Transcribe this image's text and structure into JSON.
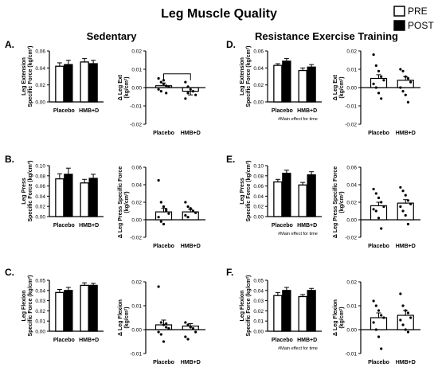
{
  "figure": {
    "title": "Leg Muscle Quality",
    "legend": [
      {
        "label": "PRE",
        "fill": "#ffffff"
      },
      {
        "label": "POST",
        "fill": "#000000"
      }
    ],
    "sections": [
      {
        "title": "Sedentary"
      },
      {
        "title": "Resistance Exercise Training"
      }
    ],
    "notes": [
      "#Main effect for time"
    ]
  },
  "chart_data": [
    {
      "id": "A-left",
      "panel_label": "A.",
      "type": "bar",
      "categories": [
        "Placebo",
        "HMB+D"
      ],
      "series": [
        {
          "name": "PRE",
          "values": [
            0.042,
            0.047
          ],
          "errors": [
            0.004,
            0.004
          ]
        },
        {
          "name": "POST",
          "values": [
            0.044,
            0.045
          ],
          "errors": [
            0.005,
            0.004
          ]
        }
      ],
      "ylabel": [
        "Leg Extension",
        "Specific Force (kg/cm²)"
      ],
      "ylim": [
        0,
        0.06
      ],
      "yticks": [
        "0.00",
        "0.02",
        "0.04",
        "0.06"
      ]
    },
    {
      "id": "A-right",
      "type": "scatter-bar",
      "categories": [
        "Placebo",
        "HMB+D"
      ],
      "values": [
        0.001,
        -0.002
      ],
      "errors": [
        0.0015,
        0.002
      ],
      "points": [
        [
          0.005,
          0.003,
          0.002,
          0.001,
          0.0005,
          -0.001,
          -0.002,
          0.004,
          -0.003
        ],
        [
          0.003,
          0.0005,
          -0.001,
          -0.002,
          -0.004,
          -0.006,
          -0.003
        ]
      ],
      "ylabel": [
        "Δ Leg Ext",
        "(kg/cm²)"
      ],
      "ylim": [
        -0.02,
        0.02
      ],
      "yticks": [
        "-0.02",
        "-0.01",
        "0.00",
        "0.01",
        "0.02"
      ],
      "bracket": true
    },
    {
      "id": "B-left",
      "panel_label": "B.",
      "type": "bar",
      "categories": [
        "Placebo",
        "HMB+D"
      ],
      "series": [
        {
          "name": "PRE",
          "values": [
            0.074,
            0.066
          ],
          "errors": [
            0.01,
            0.007
          ]
        },
        {
          "name": "POST",
          "values": [
            0.083,
            0.075
          ],
          "errors": [
            0.012,
            0.008
          ]
        }
      ],
      "ylabel": [
        "Leg Press",
        "Specific Force (kg/cm²)"
      ],
      "ylim": [
        0,
        0.1
      ],
      "yticks": [
        "0.00",
        "0.02",
        "0.04",
        "0.06",
        "0.08",
        "0.10"
      ]
    },
    {
      "id": "B-right",
      "type": "scatter-bar",
      "categories": [
        "Placebo",
        "HMB+D"
      ],
      "values": [
        0.009,
        0.009
      ],
      "errors": [
        0.004,
        0.003
      ],
      "points": [
        [
          0.045,
          0.02,
          0.015,
          0.01,
          0.007,
          0.003,
          -0.002,
          -0.005,
          0.012
        ],
        [
          0.02,
          0.015,
          0.012,
          0.01,
          0.008,
          0.005,
          0.003,
          0.013
        ]
      ],
      "ylabel": [
        "Δ Leg Press Specific Force",
        "(kg/cm²)"
      ],
      "ylim": [
        -0.02,
        0.06
      ],
      "yticks": [
        "-0.02",
        "0.00",
        "0.02",
        "0.04",
        "0.06"
      ]
    },
    {
      "id": "C-left",
      "panel_label": "C.",
      "type": "bar",
      "categories": [
        "Placebo",
        "HMB+D"
      ],
      "series": [
        {
          "name": "PRE",
          "values": [
            0.038,
            0.045
          ],
          "errors": [
            0.003,
            0.0025
          ]
        },
        {
          "name": "POST",
          "values": [
            0.04,
            0.045
          ],
          "errors": [
            0.003,
            0.002
          ]
        }
      ],
      "ylabel": [
        "Leg Flexion",
        "Specific Force (kg/cm²)"
      ],
      "ylim": [
        0,
        0.05
      ],
      "yticks": [
        "0.00",
        "0.01",
        "0.02",
        "0.03",
        "0.04",
        "0.05"
      ]
    },
    {
      "id": "C-right",
      "type": "scatter-bar",
      "categories": [
        "Placebo",
        "HMB+D"
      ],
      "values": [
        0.002,
        0.0015
      ],
      "errors": [
        0.002,
        0.001
      ],
      "points": [
        [
          0.018,
          0.003,
          0.002,
          0.001,
          0.0005,
          -0.001,
          -0.002,
          -0.005,
          0.0025
        ],
        [
          0.003,
          0.002,
          0.001,
          0.0005,
          -0.001,
          -0.003,
          -0.004
        ]
      ],
      "ylabel": [
        "Δ Leg Flexion",
        "(kg/cm²)"
      ],
      "ylim": [
        -0.01,
        0.02
      ],
      "yticks": [
        "-0.01",
        "0.00",
        "0.01",
        "0.02"
      ]
    },
    {
      "id": "D-left",
      "panel_label": "D.",
      "type": "bar",
      "categories": [
        "Placebo",
        "HMB+D"
      ],
      "series": [
        {
          "name": "PRE",
          "values": [
            0.043,
            0.037
          ],
          "errors": [
            0.002,
            0.003
          ]
        },
        {
          "name": "POST",
          "values": [
            0.048,
            0.041
          ],
          "errors": [
            0.003,
            0.003
          ]
        }
      ],
      "ylabel": [
        "Leg Extension",
        "Specific Force (kg/cm²)"
      ],
      "ylim": [
        0,
        0.06
      ],
      "yticks": [
        "0.00",
        "0.02",
        "0.04",
        "0.06"
      ],
      "note": "#Main effect for time"
    },
    {
      "id": "D-right",
      "type": "scatter-bar",
      "categories": [
        "Placebo",
        "HMB+D"
      ],
      "values": [
        0.005,
        0.004
      ],
      "errors": [
        0.002,
        0.002
      ],
      "points": [
        [
          0.018,
          0.012,
          0.009,
          0.006,
          0.004,
          0.002,
          0.0,
          -0.003,
          -0.006
        ],
        [
          0.01,
          0.009,
          0.006,
          0.005,
          0.003,
          0.0,
          -0.002,
          -0.004,
          -0.008
        ]
      ],
      "ylabel": [
        "Δ Leg Ext",
        "(kg/cm²)"
      ],
      "ylim": [
        -0.02,
        0.02
      ],
      "yticks": [
        "-0.02",
        "-0.01",
        "0.00",
        "0.01",
        "0.02"
      ]
    },
    {
      "id": "E-left",
      "panel_label": "E.",
      "type": "bar",
      "categories": [
        "Placebo",
        "HMB+D"
      ],
      "series": [
        {
          "name": "PRE",
          "values": [
            0.068,
            0.062
          ],
          "errors": [
            0.005,
            0.005
          ]
        },
        {
          "name": "POST",
          "values": [
            0.085,
            0.082
          ],
          "errors": [
            0.006,
            0.006
          ]
        }
      ],
      "ylabel": [
        "Leg Press",
        "Specific Force (kg/cm²)"
      ],
      "ylim": [
        0,
        0.1
      ],
      "yticks": [
        "0.00",
        "0.02",
        "0.04",
        "0.06",
        "0.08",
        "0.10"
      ],
      "note": "#Main effect for time"
    },
    {
      "id": "E-right",
      "type": "scatter-bar",
      "categories": [
        "Placebo",
        "HMB+D"
      ],
      "values": [
        0.016,
        0.019
      ],
      "errors": [
        0.004,
        0.004
      ],
      "points": [
        [
          0.035,
          0.03,
          0.025,
          0.02,
          0.015,
          0.012,
          0.01,
          0.002,
          -0.01
        ],
        [
          0.037,
          0.033,
          0.028,
          0.022,
          0.018,
          0.015,
          0.01,
          0.005,
          -0.005
        ]
      ],
      "ylabel": [
        "Δ Leg Press Specific Force",
        "(kg/cm²)"
      ],
      "ylim": [
        -0.02,
        0.06
      ],
      "yticks": [
        "-0.02",
        "0.00",
        "0.02",
        "0.04",
        "0.06"
      ]
    },
    {
      "id": "F-left",
      "panel_label": "F.",
      "type": "bar",
      "categories": [
        "Placebo",
        "HMB+D"
      ],
      "series": [
        {
          "name": "PRE",
          "values": [
            0.035,
            0.034
          ],
          "errors": [
            0.003,
            0.002
          ]
        },
        {
          "name": "POST",
          "values": [
            0.04,
            0.04
          ],
          "errors": [
            0.003,
            0.002
          ]
        }
      ],
      "ylabel": [
        "Leg Flexion",
        "Specific Force (kg/cm²)"
      ],
      "ylim": [
        0,
        0.05
      ],
      "yticks": [
        "0.00",
        "0.01",
        "0.02",
        "0.03",
        "0.04",
        "0.05"
      ],
      "note": "#Main effect for time"
    },
    {
      "id": "F-right",
      "type": "scatter-bar",
      "categories": [
        "Placebo",
        "HMB+D"
      ],
      "values": [
        0.005,
        0.006
      ],
      "errors": [
        0.002,
        0.002
      ],
      "points": [
        [
          0.012,
          0.01,
          0.008,
          0.006,
          0.005,
          0.003,
          0.0,
          -0.003,
          -0.008
        ],
        [
          0.015,
          0.01,
          0.008,
          0.007,
          0.005,
          0.004,
          0.002,
          0.0,
          -0.001
        ]
      ],
      "ylabel": [
        "Δ Leg Flexion",
        "(kg/cm²)"
      ],
      "ylim": [
        -0.01,
        0.02
      ],
      "yticks": [
        "-0.01",
        "0.00",
        "0.01",
        "0.02"
      ]
    }
  ]
}
